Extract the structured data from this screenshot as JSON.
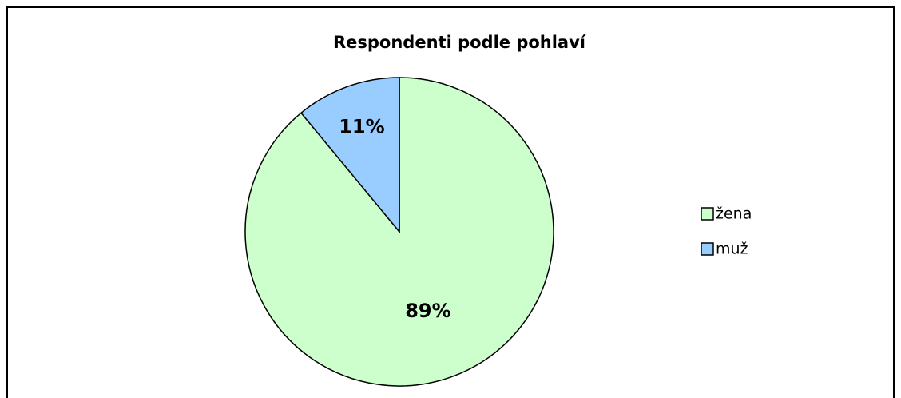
{
  "chart_data": {
    "type": "pie",
    "title": "Respondenti podle pohlaví",
    "categories": [
      "žena",
      "muž"
    ],
    "values": [
      89,
      11
    ],
    "value_labels": [
      "89%",
      "11%"
    ],
    "colors": [
      "#ccffcc",
      "#99ccff"
    ],
    "legend": "right"
  }
}
